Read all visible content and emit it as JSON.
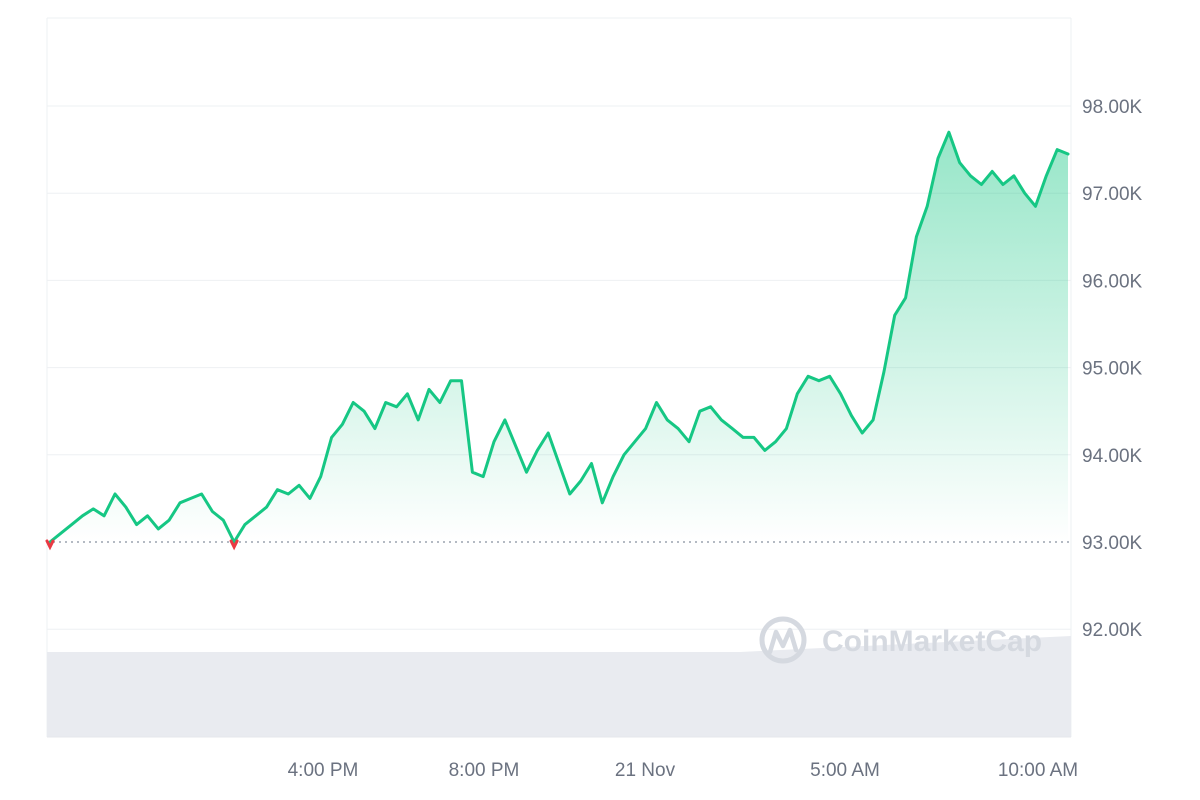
{
  "chart_data": {
    "type": "area",
    "title": "",
    "xlabel": "",
    "ylabel": "",
    "ylim": [
      90.75,
      99.0
    ],
    "reference_value": 93.0,
    "x_ticks": [
      "4:00 PM",
      "8:00 PM",
      "21 Nov",
      "5:00 AM",
      "10:00 AM"
    ],
    "y_ticks": [
      "98.00K",
      "97.00K",
      "96.00K",
      "95.00K",
      "94.00K",
      "93.00K",
      "92.00K"
    ],
    "y_tick_values": [
      98,
      97,
      96,
      95,
      94,
      93,
      92
    ],
    "series": [
      {
        "values": [
          93.0,
          93.1,
          93.2,
          93.3,
          93.38,
          93.3,
          93.55,
          93.4,
          93.2,
          93.3,
          93.15,
          93.25,
          93.45,
          93.5,
          93.55,
          93.35,
          93.25,
          93.0,
          93.2,
          93.3,
          93.4,
          93.6,
          93.55,
          93.65,
          93.5,
          93.75,
          94.2,
          94.35,
          94.6,
          94.5,
          94.3,
          94.6,
          94.55,
          94.7,
          94.4,
          94.75,
          94.6,
          94.85,
          94.85,
          93.8,
          93.75,
          94.15,
          94.4,
          94.1,
          93.8,
          94.05,
          94.25,
          93.9,
          93.55,
          93.7,
          93.9,
          93.45,
          93.75,
          94.0,
          94.15,
          94.3,
          94.6,
          94.4,
          94.3,
          94.15,
          94.5,
          94.55,
          94.4,
          94.3,
          94.2,
          94.2,
          94.05,
          94.15,
          94.3,
          94.7,
          94.9,
          94.85,
          94.9,
          94.7,
          94.45,
          94.25,
          94.4,
          94.95,
          95.6,
          95.8,
          96.5,
          96.85,
          97.4,
          97.7,
          97.35,
          97.2,
          97.1,
          97.25,
          97.1,
          97.2,
          97.0,
          96.85,
          97.2,
          97.5,
          97.45
        ]
      }
    ],
    "colors": {
      "line": "#16c784",
      "below_reference": "#ea3943",
      "fill_top": "#16c784",
      "reference_line": "#9ca3af",
      "grid": "#eef0f3",
      "volume": "#e9ebf0"
    }
  },
  "watermark": {
    "brand": "CoinMarketCap",
    "icon": "coinmarketcap-logo-icon"
  }
}
